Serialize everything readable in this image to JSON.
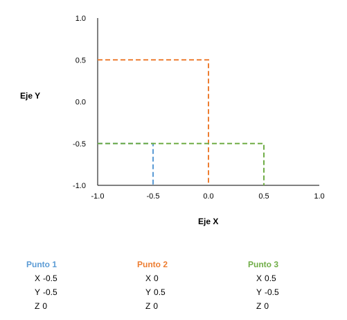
{
  "chart_data": {
    "type": "line",
    "xlabel": "Eje X",
    "ylabel": "Eje Y",
    "xlim": [
      -1.0,
      1.0
    ],
    "ylim": [
      -1.0,
      1.0
    ],
    "x_ticks": [
      "-1.0",
      "-0.5",
      "0.0",
      "0.5",
      "1.0"
    ],
    "y_ticks": [
      "-1.0",
      "-0.5",
      "0.0",
      "0.5",
      "1.0"
    ],
    "grid": false,
    "line_style": "dashed",
    "series": [
      {
        "name": "Punto 1",
        "color": "#5B9BD5",
        "x": [
          -1.0,
          -0.5,
          -0.5
        ],
        "y": [
          -0.5,
          -0.5,
          -1.0
        ]
      },
      {
        "name": "Punto 2",
        "color": "#ED7D31",
        "x": [
          -1.0,
          0.0,
          0.0
        ],
        "y": [
          0.5,
          0.5,
          -1.0
        ]
      },
      {
        "name": "Punto 3",
        "color": "#70AD47",
        "x": [
          -1.0,
          0.5,
          0.5
        ],
        "y": [
          -0.5,
          -0.5,
          -1.0
        ]
      }
    ]
  },
  "points": [
    {
      "title": "Punto 1",
      "color": "#5B9BD5",
      "x_label": "X",
      "x_value": "-0.5",
      "y_label": "Y",
      "y_value": "-0.5",
      "z_label": "Z",
      "z_value": "0"
    },
    {
      "title": "Punto 2",
      "color": "#ED7D31",
      "x_label": "X",
      "x_value": "0",
      "y_label": "Y",
      "y_value": "0.5",
      "z_label": "Z",
      "z_value": "0"
    },
    {
      "title": "Punto 3",
      "color": "#70AD47",
      "x_label": "X",
      "x_value": "0.5",
      "y_label": "Y",
      "y_value": "-0.5",
      "z_label": "Z",
      "z_value": "0"
    }
  ]
}
